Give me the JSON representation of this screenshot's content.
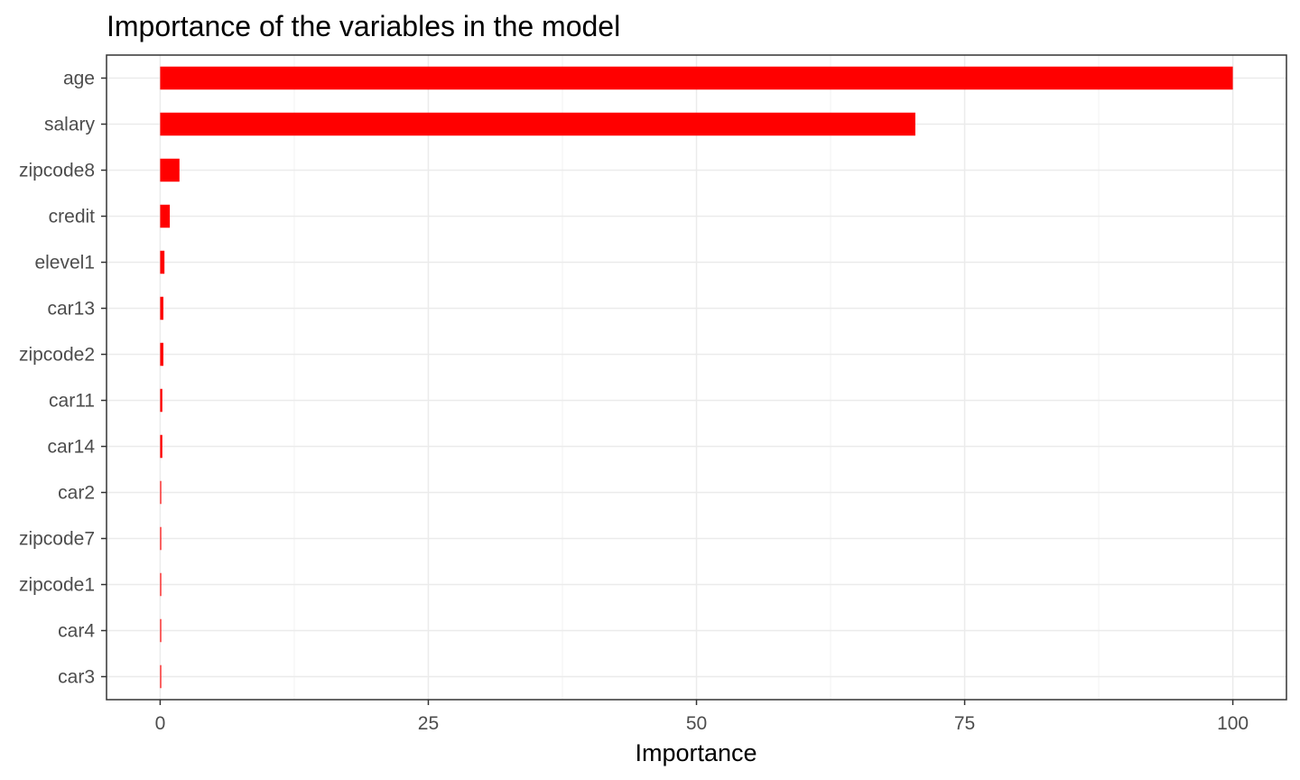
{
  "chart_data": {
    "type": "bar",
    "orientation": "horizontal",
    "title": "Importance of the variables in the model",
    "xlabel": "Importance",
    "ylabel": "",
    "xlim": [
      -5,
      105
    ],
    "x_ticks": [
      0,
      25,
      50,
      75,
      100
    ],
    "grid": true,
    "bar_color": "#ff0000",
    "categories": [
      "age",
      "salary",
      "zipcode8",
      "credit",
      "elevel1",
      "car13",
      "zipcode2",
      "car11",
      "car14",
      "car2",
      "zipcode7",
      "zipcode1",
      "car4",
      "car3"
    ],
    "values": [
      100,
      70.4,
      1.8,
      0.9,
      0.4,
      0.3,
      0.3,
      0.2,
      0.2,
      0.1,
      0.1,
      0.1,
      0.1,
      0.1
    ]
  }
}
